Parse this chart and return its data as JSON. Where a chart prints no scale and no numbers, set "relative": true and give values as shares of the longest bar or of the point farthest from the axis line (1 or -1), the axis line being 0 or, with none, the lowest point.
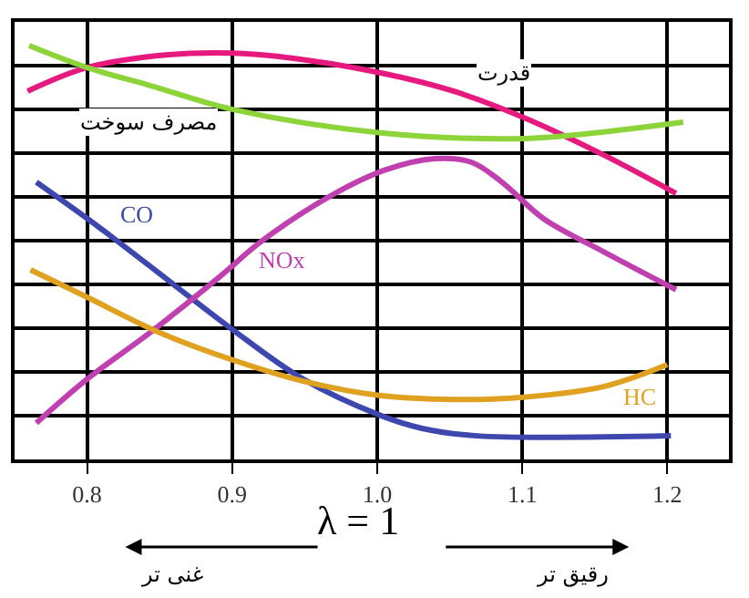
{
  "chart_data": {
    "type": "line",
    "relative": true,
    "grid": true,
    "legend": false,
    "marker": "none",
    "line_style": "solid",
    "xlim": [
      0.75,
      1.2425
    ],
    "xticks": [
      0.8,
      0.9,
      {
        "value": 1.0,
        "label": "1.0"
      },
      1.1,
      1.2
    ],
    "series": [
      {
        "name": "قدرت",
        "color": "#e6197f",
        "x": [
          0.759,
          0.8,
          0.856,
          0.9,
          0.931,
          1.0025,
          1.0525,
          1.1025,
          1.156,
          1.206
        ],
        "values": [
          0.89,
          0.947,
          0.978,
          0.982,
          0.974,
          0.934,
          0.89,
          0.824,
          0.736,
          0.643
        ]
      },
      {
        "name": "مصرف سوخت",
        "color": "#8cd43a",
        "x": [
          0.76,
          0.8,
          0.844,
          0.9,
          1.0025,
          1.094,
          1.136,
          1.211
        ],
        "values": [
          1.0,
          0.947,
          0.903,
          0.846,
          0.789,
          0.775,
          0.784,
          0.815
        ]
      },
      {
        "name": "CO",
        "color": "#3d47ae",
        "x": [
          0.765,
          0.809,
          0.861,
          0.899,
          0.949,
          1.0025,
          1.031,
          1.069,
          1.2025
        ],
        "values": [
          0.67,
          0.559,
          0.419,
          0.317,
          0.194,
          0.106,
          0.075,
          0.057,
          0.057
        ]
      },
      {
        "name": "NOx",
        "color": "#c040b0",
        "x": [
          0.765,
          0.8,
          0.844,
          0.894,
          0.919,
          0.969,
          1.006,
          1.04,
          1.065,
          1.086,
          1.115,
          1.156,
          1.206
        ],
        "values": [
          0.088,
          0.194,
          0.308,
          0.449,
          0.524,
          0.639,
          0.7,
          0.727,
          0.718,
          0.67,
          0.581,
          0.502,
          0.41
        ]
      },
      {
        "name": "HC",
        "color": "#e0a020",
        "x": [
          0.761,
          0.8,
          0.849,
          0.899,
          0.949,
          1.0025,
          1.0525,
          1.099,
          1.156,
          1.2
        ],
        "values": [
          0.458,
          0.392,
          0.308,
          0.242,
          0.189,
          0.154,
          0.145,
          0.15,
          0.176,
          0.229
        ]
      }
    ],
    "annotations": [
      "λ = 1",
      "غنی تر",
      "رقیق تر"
    ]
  }
}
